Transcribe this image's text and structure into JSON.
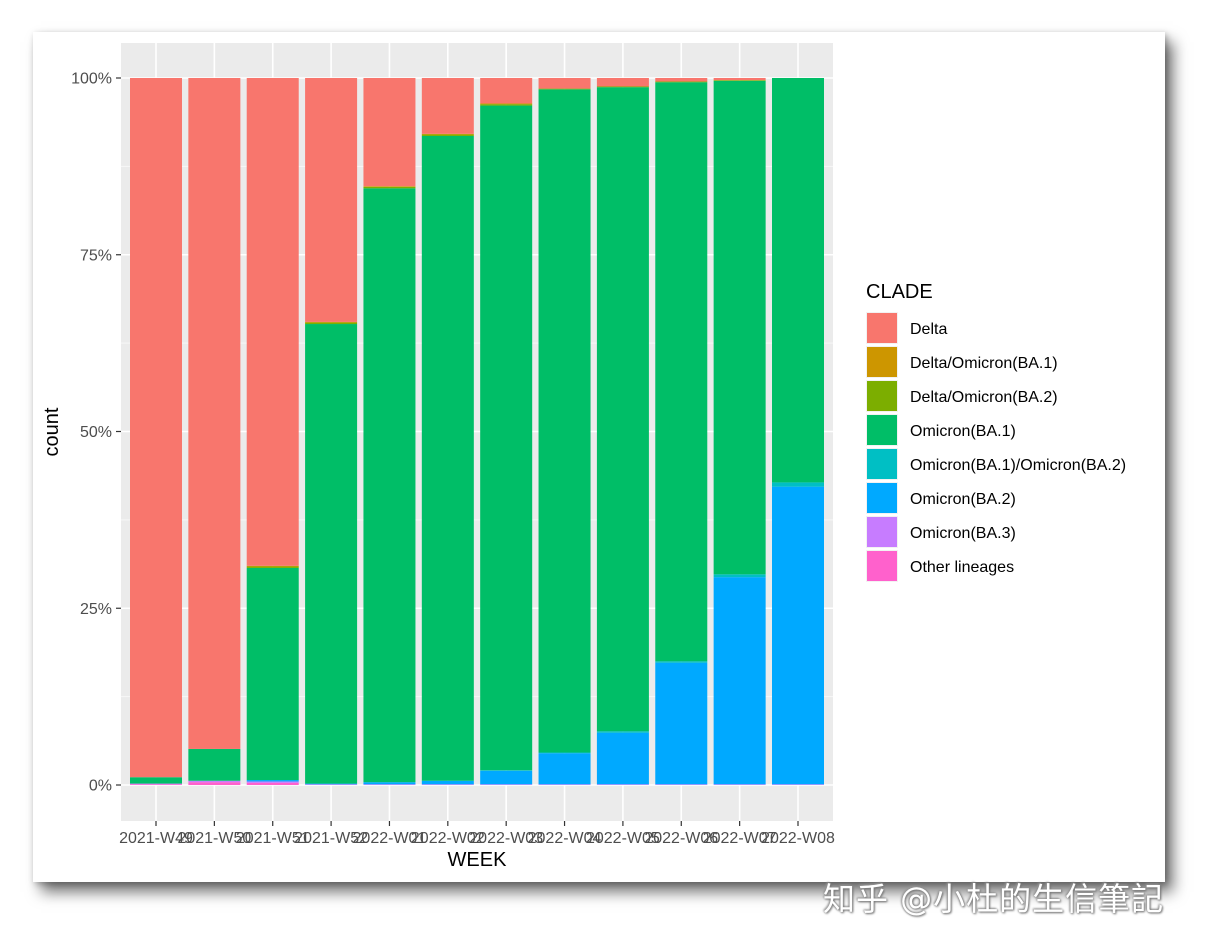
{
  "watermark": "知乎 @小杜的生信筆記",
  "chart_data": {
    "type": "bar",
    "stacked": true,
    "position": "fill",
    "title": "",
    "xlabel": "WEEK",
    "ylabel": "count",
    "ylim": [
      0,
      100
    ],
    "yticks": [
      0,
      25,
      50,
      75,
      100
    ],
    "ytick_labels": [
      "0%",
      "25%",
      "50%",
      "75%",
      "100%"
    ],
    "categories": [
      "2021-W49",
      "2021-W50",
      "2021-W51",
      "2021-W52",
      "2022-W01",
      "2022-W02",
      "2022-W03",
      "2022-W04",
      "2022-W05",
      "2022-W06",
      "2022-W07",
      "2022-W08"
    ],
    "legend_title": "CLADE",
    "legend_position": "right",
    "grid": true,
    "series": [
      {
        "name": "Delta",
        "color": "#F8766D",
        "values": [
          98.9,
          94.9,
          69.0,
          34.5,
          15.3,
          7.9,
          3.6,
          1.5,
          1.2,
          0.5,
          0.3,
          0
        ]
      },
      {
        "name": "Delta/Omicron(BA.1)",
        "color": "#CD9600",
        "values": [
          0,
          0,
          0.1,
          0.1,
          0.1,
          0.1,
          0.1,
          0,
          0,
          0,
          0,
          0
        ]
      },
      {
        "name": "Delta/Omicron(BA.2)",
        "color": "#7CAE00",
        "values": [
          0,
          0,
          0.2,
          0.2,
          0.2,
          0.2,
          0.2,
          0.1,
          0.1,
          0.1,
          0.1,
          0
        ]
      },
      {
        "name": "Omicron(BA.1)",
        "color": "#00BE67",
        "values": [
          0.9,
          4.5,
          30.0,
          65.0,
          84.0,
          91.2,
          94.0,
          93.8,
          91.1,
          81.9,
          69.8,
          57.2
        ]
      },
      {
        "name": "Omicron(BA.1)/Omicron(BA.2)",
        "color": "#00BFC4",
        "values": [
          0,
          0,
          0,
          0,
          0,
          0,
          0.1,
          0.1,
          0.2,
          0.2,
          0.4,
          0.6
        ]
      },
      {
        "name": "Omicron(BA.2)",
        "color": "#00A9FF",
        "values": [
          0,
          0,
          0.2,
          0.1,
          0.3,
          0.5,
          1.9,
          4.4,
          7.3,
          17.2,
          29.3,
          42.1
        ]
      },
      {
        "name": "Omicron(BA.3)",
        "color": "#C77CFF",
        "values": [
          0.1,
          0.2,
          0.2,
          0.1,
          0.1,
          0.1,
          0.1,
          0.1,
          0.1,
          0.1,
          0.1,
          0.1
        ]
      },
      {
        "name": "Other lineages",
        "color": "#FF61CC",
        "values": [
          0.1,
          0.4,
          0.3,
          0,
          0,
          0,
          0,
          0,
          0,
          0,
          0,
          0
        ]
      }
    ]
  }
}
